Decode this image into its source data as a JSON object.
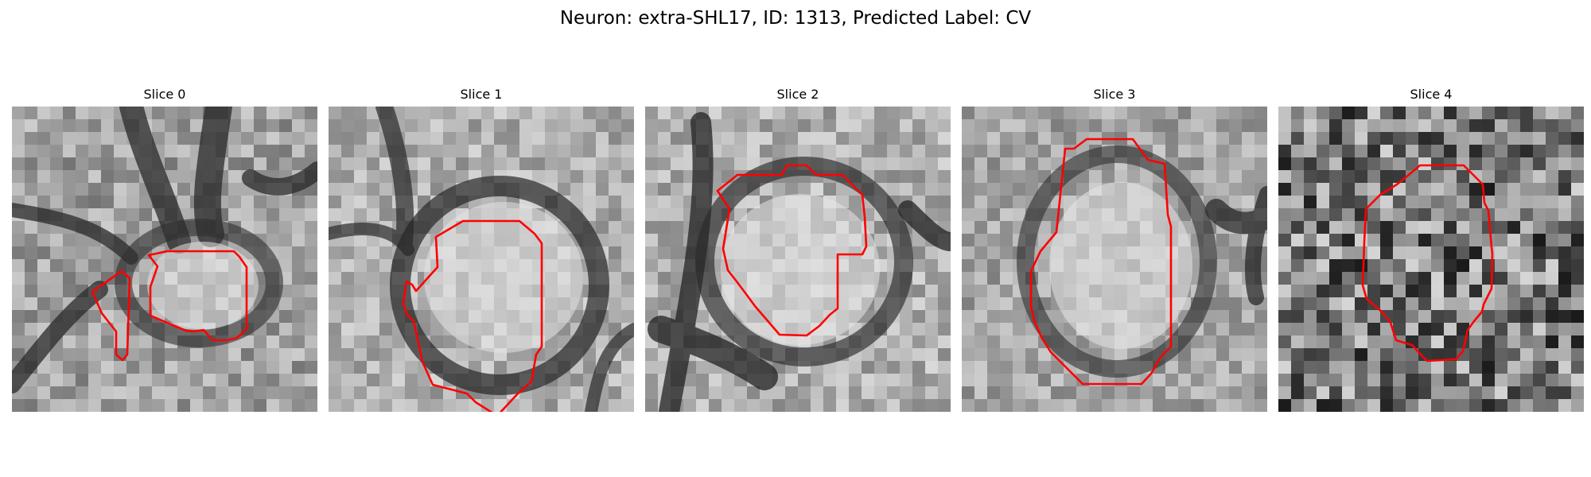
{
  "figure": {
    "title": "Neuron: extra-SHL17, ID: 1313, Predicted Label: CV"
  },
  "panels": [
    {
      "title": "Slice 0",
      "image": "grayscale-em-patch",
      "contour_color": "#ff0000"
    },
    {
      "title": "Slice 1",
      "image": "grayscale-em-patch",
      "contour_color": "#ff0000"
    },
    {
      "title": "Slice 2",
      "image": "grayscale-em-patch",
      "contour_color": "#ff0000"
    },
    {
      "title": "Slice 3",
      "image": "grayscale-em-patch",
      "contour_color": "#ff0000"
    },
    {
      "title": "Slice 4",
      "image": "grayscale-em-patch",
      "contour_color": "#ff0000"
    }
  ]
}
